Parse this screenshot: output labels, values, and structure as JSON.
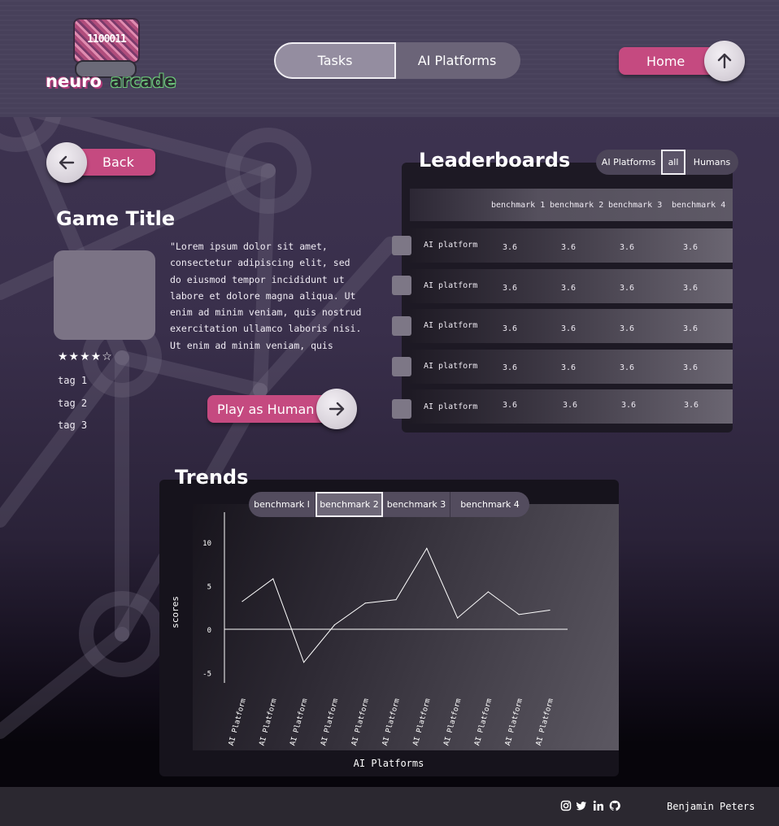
{
  "brand": {
    "logo_chip": "1100011",
    "logo_word_1": "neuro",
    "logo_word_2": "arcade"
  },
  "nav": {
    "tabs": [
      {
        "label": "Tasks",
        "active": true
      },
      {
        "label": "AI Platforms",
        "active": false
      }
    ],
    "home_label": "Home",
    "home_icon": "arrow-up-icon"
  },
  "back": {
    "label": "Back",
    "icon": "arrow-left-icon"
  },
  "game": {
    "title": "Game Title",
    "description": "\"Lorem ipsum dolor sit amet, consectetur adipiscing elit, sed do eiusmod tempor incididunt ut labore et dolore magna aliqua. Ut enim ad minim veniam, quis nostrud exercitation ullamco laboris nisi. Ut enim ad minim veniam, quis",
    "rating": 4,
    "rating_max": 5,
    "stars_text": "★★★★☆",
    "tags": [
      "tag 1",
      "tag 2",
      "tag 3"
    ],
    "play_label": "Play as Human",
    "play_icon": "arrow-right-icon"
  },
  "leaderboard": {
    "title": "Leaderboards",
    "filters": [
      {
        "label": "AI Platforms",
        "active": false
      },
      {
        "label": "all",
        "active": true
      },
      {
        "label": "Humans",
        "active": false
      }
    ],
    "columns": [
      "benchmark 1",
      "benchmark 2",
      "benchmark 3",
      "benchmark 4"
    ],
    "rows": [
      {
        "name": "AI platform",
        "scores": [
          "3.6",
          "3.6",
          "3.6",
          "3.6"
        ]
      },
      {
        "name": "AI platform",
        "scores": [
          "3.6",
          "3.6",
          "3.6",
          "3.6"
        ]
      },
      {
        "name": "AI platform",
        "scores": [
          "3.6",
          "3.6",
          "3.6",
          "3.6"
        ]
      },
      {
        "name": "AI platform",
        "scores": [
          "3.6",
          "3.6",
          "3.6",
          "3.6"
        ]
      },
      {
        "name": "AI platform",
        "scores": [
          "3.6",
          "3.6",
          "3.6",
          "3.6"
        ]
      }
    ]
  },
  "trends": {
    "title": "Trends",
    "tabs": [
      {
        "label": "benchmark l",
        "active": false
      },
      {
        "label": "benchmark 2",
        "active": true
      },
      {
        "label": "benchmark 3",
        "active": false
      },
      {
        "label": "benchmark 4",
        "active": false
      }
    ]
  },
  "chart_data": {
    "type": "line",
    "title": "",
    "xlabel": "AI Platforms",
    "ylabel": "scores",
    "categories": [
      "AI Platform",
      "AI Platform",
      "AI Platform",
      "AI Platform",
      "AI Platform",
      "AI Platform",
      "AI Platform",
      "AI Platform",
      "AI Platform",
      "AI Platform",
      "AI Platform"
    ],
    "series": [
      {
        "values": [
          3.2,
          5.8,
          -3.8,
          0.5,
          3.0,
          3.4,
          9.3,
          1.3,
          4.3,
          1.7,
          2.2
        ]
      }
    ],
    "yticks": [
      10,
      5,
      0,
      -5
    ],
    "ylim": [
      -5,
      12
    ],
    "grid": false,
    "colors": {
      "line": "#ffffff",
      "axis": "#ffffff"
    }
  },
  "footer": {
    "icons": [
      "instagram-icon",
      "twitter-icon",
      "linkedin-icon",
      "github-icon"
    ],
    "author": "Benjamin Peters"
  },
  "colors": {
    "accent": "#c54a80",
    "header": "#47405a",
    "panel": "#1d1924"
  }
}
